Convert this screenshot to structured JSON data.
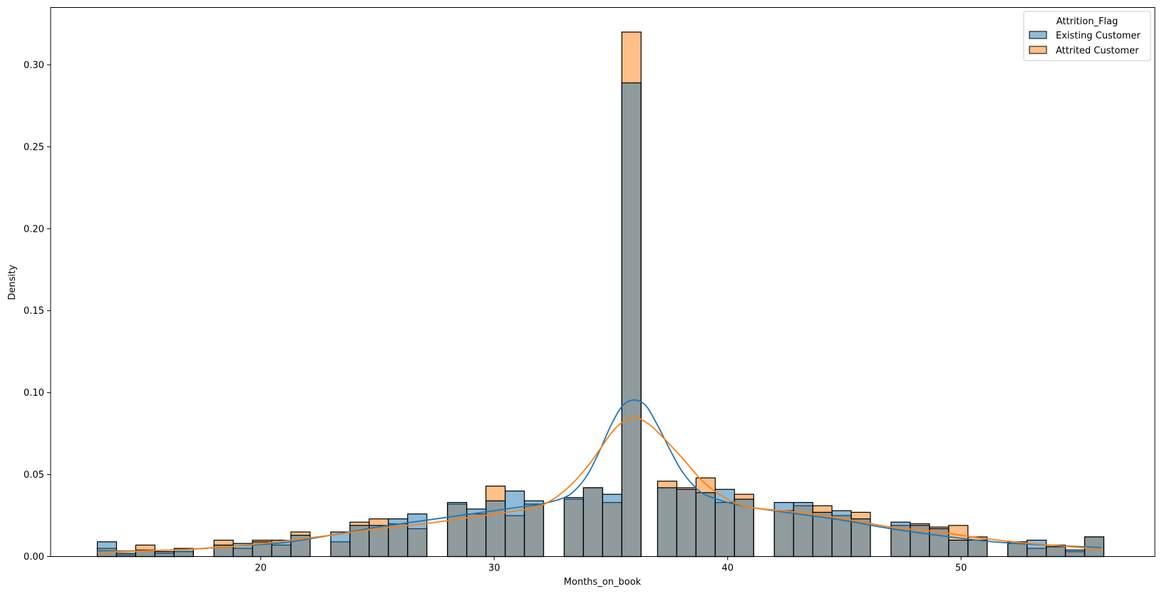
{
  "chart_data": {
    "type": "histogram",
    "xlabel": "Months_on_book",
    "ylabel": "Density",
    "xlim": [
      11,
      58.3
    ],
    "ylim": [
      0,
      0.335
    ],
    "xticks": [
      20,
      30,
      40,
      50
    ],
    "yticks": [
      0.0,
      0.05,
      0.1,
      0.15,
      0.2,
      0.25,
      0.3
    ],
    "ytick_labels": [
      "0.00",
      "0.05",
      "0.10",
      "0.15",
      "0.20",
      "0.25",
      "0.30"
    ],
    "bin_width": 0.823,
    "legend": {
      "title": "Attrition_Flag",
      "placement": "top-right"
    },
    "series": [
      {
        "name": "Existing Customer",
        "color": "#1f77b4",
        "bin_starts": [
          13.0,
          13.823,
          14.646,
          15.469,
          16.292,
          18.0,
          18.823,
          19.646,
          20.469,
          21.292,
          23.0,
          23.823,
          24.646,
          25.469,
          26.292,
          28.0,
          28.823,
          29.646,
          30.469,
          31.292,
          33.0,
          33.823,
          34.646,
          35.469,
          37.0,
          37.823,
          38.646,
          39.469,
          40.292,
          42.0,
          42.823,
          43.646,
          44.469,
          45.292,
          47.0,
          47.823,
          48.646,
          49.469,
          50.292,
          52.0,
          52.823,
          53.646,
          54.469,
          55.292
        ],
        "values": [
          0.009,
          0.002,
          0.004,
          0.003,
          0.005,
          0.007,
          0.008,
          0.009,
          0.01,
          0.013,
          0.015,
          0.019,
          0.019,
          0.023,
          0.026,
          0.033,
          0.029,
          0.034,
          0.04,
          0.034,
          0.036,
          0.042,
          0.038,
          0.289,
          0.042,
          0.041,
          0.039,
          0.041,
          0.035,
          0.033,
          0.033,
          0.027,
          0.028,
          0.023,
          0.021,
          0.019,
          0.017,
          0.01,
          0.01,
          0.008,
          0.01,
          0.006,
          0.004,
          0.012
        ],
        "kde_x": [
          13,
          15,
          17,
          19,
          21,
          23,
          25,
          27,
          29,
          31,
          32,
          33,
          33.5,
          34,
          34.5,
          35,
          35.5,
          36,
          36.5,
          37,
          37.5,
          38,
          38.5,
          39,
          40,
          41,
          43,
          45,
          47,
          49,
          51,
          53,
          56
        ],
        "kde_y": [
          0.0035,
          0.0035,
          0.0045,
          0.0065,
          0.0085,
          0.013,
          0.018,
          0.022,
          0.026,
          0.03,
          0.032,
          0.036,
          0.041,
          0.05,
          0.064,
          0.08,
          0.092,
          0.0955,
          0.092,
          0.08,
          0.066,
          0.053,
          0.044,
          0.038,
          0.033,
          0.03,
          0.026,
          0.022,
          0.017,
          0.013,
          0.0095,
          0.0075,
          0.0055
        ]
      },
      {
        "name": "Attrited Customer",
        "color": "#ff7f0e",
        "bin_starts": [
          13.0,
          13.823,
          14.646,
          15.469,
          16.292,
          18.0,
          18.823,
          19.646,
          20.469,
          21.292,
          23.0,
          23.823,
          24.646,
          25.469,
          26.292,
          28.0,
          28.823,
          29.646,
          30.469,
          31.292,
          33.0,
          33.823,
          34.646,
          35.469,
          37.0,
          37.823,
          38.646,
          39.469,
          40.292,
          42.0,
          42.823,
          43.646,
          44.469,
          45.292,
          47.0,
          47.823,
          48.646,
          49.469,
          50.292,
          52.0,
          52.823,
          53.646,
          54.469,
          55.292
        ],
        "values": [
          0.005,
          0.001,
          0.007,
          0.002,
          0.003,
          0.01,
          0.005,
          0.01,
          0.007,
          0.015,
          0.009,
          0.021,
          0.023,
          0.02,
          0.017,
          0.032,
          0.026,
          0.043,
          0.025,
          0.032,
          0.035,
          0.042,
          0.033,
          0.32,
          0.046,
          0.042,
          0.048,
          0.033,
          0.038,
          0.028,
          0.031,
          0.031,
          0.025,
          0.027,
          0.019,
          0.02,
          0.018,
          0.019,
          0.012,
          0.009,
          0.005,
          0.007,
          0.003,
          0.012
        ],
        "kde_x": [
          13,
          15,
          17,
          19,
          21,
          23,
          25,
          27,
          29,
          31,
          32,
          33,
          34,
          35,
          35.5,
          36,
          36.5,
          37,
          38,
          39,
          40,
          41,
          43,
          45,
          47,
          49,
          51,
          53,
          56
        ],
        "kde_y": [
          0.0025,
          0.0035,
          0.0045,
          0.0065,
          0.0095,
          0.013,
          0.017,
          0.02,
          0.024,
          0.028,
          0.031,
          0.04,
          0.055,
          0.075,
          0.082,
          0.085,
          0.082,
          0.076,
          0.061,
          0.045,
          0.035,
          0.03,
          0.027,
          0.023,
          0.018,
          0.015,
          0.011,
          0.008,
          0.0045
        ]
      }
    ]
  }
}
